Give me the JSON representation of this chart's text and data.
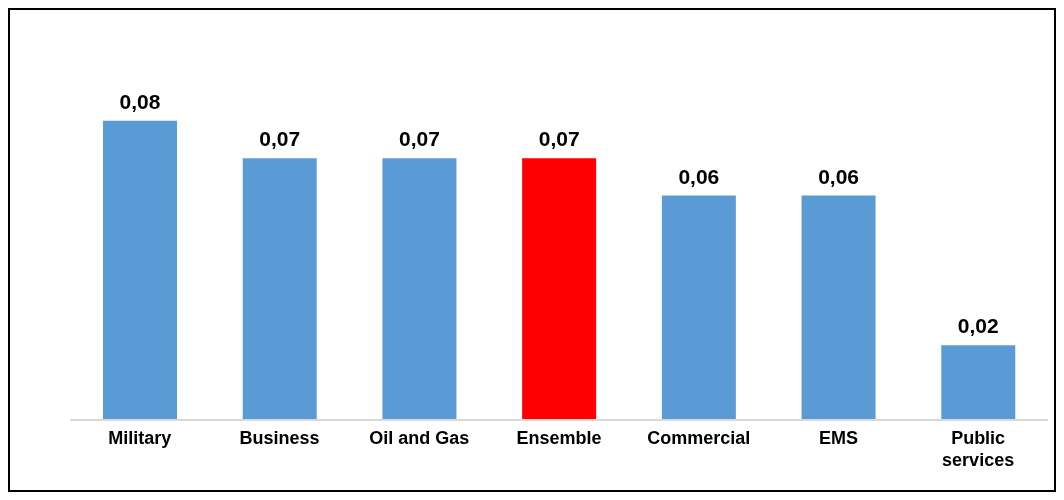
{
  "chart_data": {
    "type": "bar",
    "categories": [
      "Military",
      "Business",
      "Oil and Gas",
      "Ensemble",
      "Commercial",
      "EMS",
      "Public services"
    ],
    "values": [
      0.08,
      0.07,
      0.07,
      0.07,
      0.06,
      0.06,
      0.02
    ],
    "colors": [
      "#5b9bd5",
      "#5b9bd5",
      "#5b9bd5",
      "#ff0000",
      "#5b9bd5",
      "#5b9bd5",
      "#5b9bd5"
    ],
    "value_labels": [
      "0,08",
      "0,07",
      "0,07",
      "0,07",
      "0,06",
      "0,06",
      "0,02"
    ]
  }
}
